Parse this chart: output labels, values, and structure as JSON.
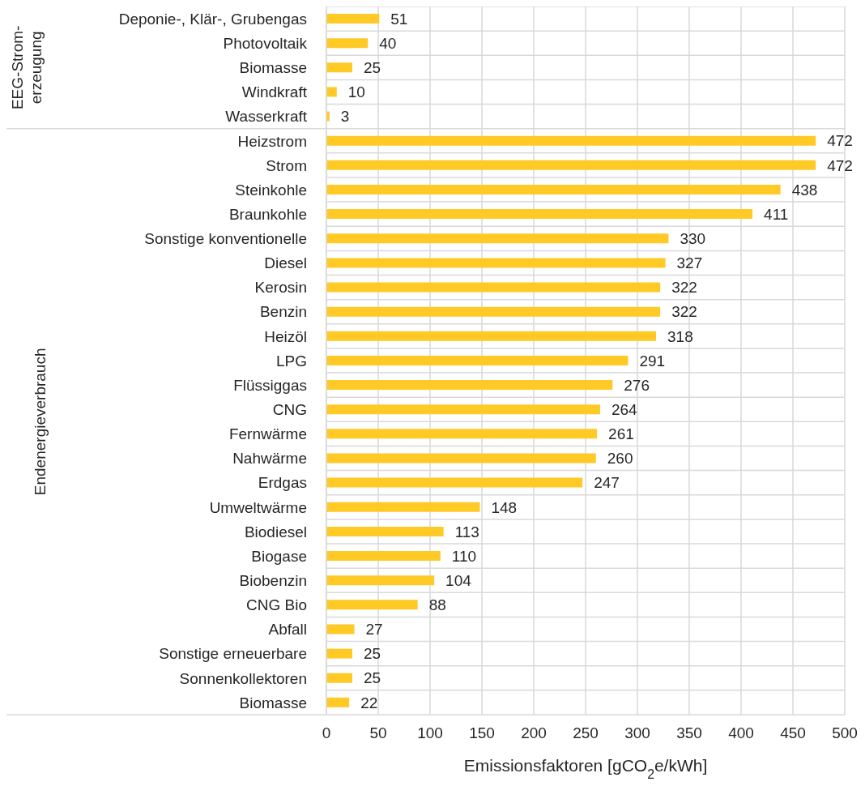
{
  "chart_data": {
    "type": "bar",
    "orientation": "horizontal",
    "categories": [
      "Deponie-, Klär-, Grubengas",
      "Photovoltaik",
      "Biomasse",
      "Windkraft",
      "Wasserkraft",
      "Heizstrom",
      "Strom",
      "Steinkohle",
      "Braunkohle",
      "Sonstige konventionelle ",
      "Diesel",
      "Kerosin",
      "Benzin",
      "Heizöl",
      "LPG",
      "Flüssiggas",
      "CNG",
      "Fernwärme",
      "Nahwärme",
      "Erdgas",
      "Umweltwärme",
      "Biodiesel",
      "Biogase",
      "Biobenzin",
      "CNG Bio",
      "Abfall",
      "Sonstige erneuerbare ",
      "Sonnenkollektoren",
      "Biomasse"
    ],
    "values": [
      51,
      40,
      25,
      10,
      3,
      472,
      472,
      438,
      411,
      330,
      327,
      322,
      322,
      318,
      291,
      276,
      264,
      261,
      260,
      247,
      148,
      113,
      110,
      104,
      88,
      27,
      25,
      25,
      22
    ],
    "color": "#ffc926",
    "xlim": [
      0,
      500
    ],
    "xticks": [
      0,
      50,
      100,
      150,
      200,
      250,
      300,
      350,
      400,
      450,
      500
    ],
    "xlabel": "Emissionsfaktoren [gCO$_{2}$e/kWh]",
    "annotations": [
      "EEG-Strom-\nerzeugung",
      "Endenergieverbrauch"
    ],
    "data_labels": true,
    "grid": true
  }
}
